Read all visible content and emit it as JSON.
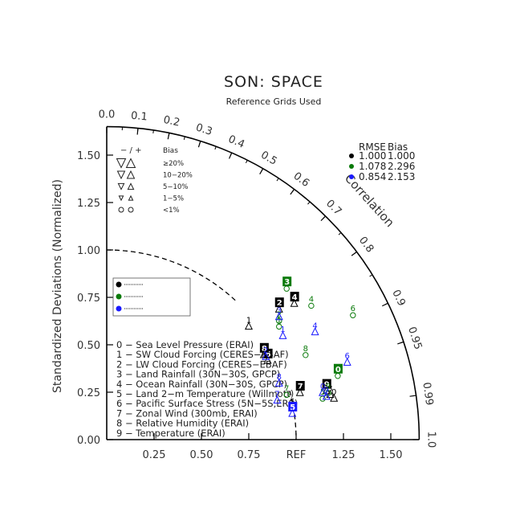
{
  "chart_data": {
    "type": "scatter",
    "subtype": "taylor-diagram",
    "title": "SON: SPACE",
    "subtitle": "Reference Grids Used",
    "ylabel": "Standardized Deviations (Normalized)",
    "arc_label": "Correlation",
    "std_range": [
      0,
      1.65
    ],
    "x_ticks": [
      "0.25",
      "0.50",
      "0.75",
      "REF",
      "1.25",
      "1.50"
    ],
    "x_tick_values": [
      0.25,
      0.5,
      0.75,
      1.0,
      1.25,
      1.5
    ],
    "y_ticks": [
      "0.00",
      "0.25",
      "0.50",
      "0.75",
      "1.00",
      "1.25",
      "1.50"
    ],
    "y_tick_values": [
      0,
      0.25,
      0.5,
      0.75,
      1.0,
      1.25,
      1.5
    ],
    "corr_labels": [
      {
        "r": 0.0,
        "text": "0.0"
      },
      {
        "r": 0.1,
        "text": "0.1"
      },
      {
        "r": 0.2,
        "text": "0.2"
      },
      {
        "r": 0.3,
        "text": "0.3"
      },
      {
        "r": 0.4,
        "text": "0.4"
      },
      {
        "r": 0.5,
        "text": "0.5"
      },
      {
        "r": 0.6,
        "text": "0.6"
      },
      {
        "r": 0.7,
        "text": "0.7"
      },
      {
        "r": 0.8,
        "text": "0.8"
      },
      {
        "r": 0.9,
        "text": "0.9"
      },
      {
        "r": 0.95,
        "text": "0.95"
      },
      {
        "r": 0.99,
        "text": "0.99"
      },
      {
        "r": 1.0,
        "text": "1.0"
      }
    ],
    "ref_arc_std": 1.0,
    "case_legend": {
      "header_rmse": "RMSE",
      "header_bias": "Bias",
      "rows": [
        {
          "color": "#000000",
          "rmse": "1.000",
          "bias": "1.000"
        },
        {
          "color": "#0a7a0a",
          "rmse": "1.078",
          "bias": "2.296"
        },
        {
          "color": "#1a1aff",
          "rmse": "0.854",
          "bias": "2.153"
        }
      ]
    },
    "bias_legend": {
      "header": "− / +",
      "header_right": "Bias",
      "rows": [
        "≥20%",
        "10−20%",
        "5−10%",
        "1−5%",
        "<1%"
      ]
    },
    "variables": [
      "0 − Sea Level Pressure (ERAI)",
      "1 − SW Cloud Forcing (CERES−EBAF)",
      "2 − LW Cloud Forcing (CERES−EBAF)",
      "3 − Land Rainfall (30N−30S, GPCP)",
      "4 − Ocean Rainfall (30N−30S, GPCP)",
      "5 − Land 2−m Temperature (Willmott)",
      "6 − Pacific Surface Stress (5N−5S,ERS)",
      "7 − Zonal Wind (300mb, ERAI)",
      "8 − Relative Humidity (ERAI)",
      "9 − Temperature (ERAI)"
    ],
    "series": [
      {
        "color": "#000000",
        "points": [
          {
            "label": "0",
            "x": 1.2,
            "y": 0.22,
            "boxed": false
          },
          {
            "label": "1",
            "x": 0.75,
            "y": 0.6,
            "boxed": false
          },
          {
            "label": "2",
            "x": 0.91,
            "y": 0.69,
            "boxed": true
          },
          {
            "label": "3",
            "x": 1.18,
            "y": 0.24,
            "boxed": false
          },
          {
            "label": "4",
            "x": 0.99,
            "y": 0.72,
            "boxed": true
          },
          {
            "label": "5",
            "x": 0.98,
            "y": 0.17,
            "boxed": false
          },
          {
            "label": "6",
            "x": 0.85,
            "y": 0.42,
            "boxed": true
          },
          {
            "label": "7",
            "x": 1.02,
            "y": 0.25,
            "boxed": true
          },
          {
            "label": "8",
            "x": 0.83,
            "y": 0.45,
            "boxed": true
          },
          {
            "label": "9",
            "x": 1.16,
            "y": 0.26,
            "boxed": true
          }
        ]
      },
      {
        "color": "#0a7a0a",
        "points": [
          {
            "label": "0",
            "x": 1.22,
            "y": 0.34,
            "boxed": true
          },
          {
            "label": "1",
            "x": 0.91,
            "y": 0.6,
            "boxed": false
          },
          {
            "label": "2",
            "x": 0.91,
            "y": 0.63,
            "boxed": false
          },
          {
            "label": "3",
            "x": 0.95,
            "y": 0.8,
            "boxed": true
          },
          {
            "label": "4",
            "x": 1.08,
            "y": 0.71,
            "boxed": false
          },
          {
            "label": "5",
            "x": 1.14,
            "y": 0.22,
            "boxed": false
          },
          {
            "label": "6",
            "x": 1.3,
            "y": 0.66,
            "boxed": false
          },
          {
            "label": "7",
            "x": 0.95,
            "y": 0.24,
            "boxed": false
          },
          {
            "label": "8",
            "x": 1.05,
            "y": 0.45,
            "boxed": false
          },
          {
            "label": "9",
            "x": 1.17,
            "y": 0.25,
            "boxed": false
          }
        ]
      },
      {
        "color": "#1a1aff",
        "points": [
          {
            "label": "0",
            "x": 1.14,
            "y": 0.25,
            "boxed": false
          },
          {
            "label": "1",
            "x": 0.93,
            "y": 0.55,
            "boxed": false
          },
          {
            "label": "2",
            "x": 0.84,
            "y": 0.44,
            "boxed": false
          },
          {
            "label": "3",
            "x": 0.91,
            "y": 0.65,
            "boxed": false
          },
          {
            "label": "4",
            "x": 1.1,
            "y": 0.57,
            "boxed": false
          },
          {
            "label": "5",
            "x": 0.98,
            "y": 0.14,
            "boxed": true
          },
          {
            "label": "6",
            "x": 1.27,
            "y": 0.41,
            "boxed": false
          },
          {
            "label": "7",
            "x": 0.9,
            "y": 0.21,
            "boxed": false
          },
          {
            "label": "8",
            "x": 0.91,
            "y": 0.3,
            "boxed": false
          },
          {
            "label": "9",
            "x": 1.16,
            "y": 0.23,
            "boxed": false
          }
        ]
      }
    ]
  }
}
